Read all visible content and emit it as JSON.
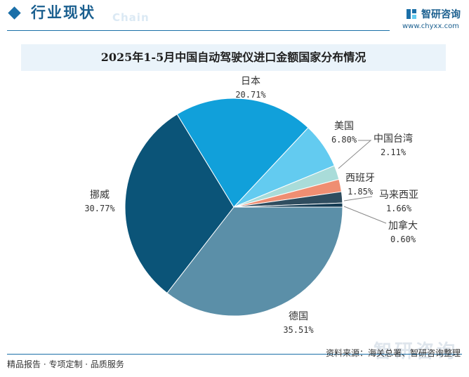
{
  "header": {
    "title": "行业现状",
    "subtitle_watermark": "Chain"
  },
  "logo": {
    "name": "智研咨询",
    "url": "www.chyxx.com"
  },
  "chart_data": {
    "type": "pie",
    "title": "2025年1-5月中国自动驾驶仪进口金额国家分布情况",
    "unit": "%",
    "slices": [
      {
        "label": "德国",
        "value": 35.51,
        "value_label": "35.51%",
        "color": "#5b8fa8"
      },
      {
        "label": "挪威",
        "value": 30.77,
        "value_label": "30.77%",
        "color": "#0b5478"
      },
      {
        "label": "日本",
        "value": 20.71,
        "value_label": "20.71%",
        "color": "#11a0da"
      },
      {
        "label": "美国",
        "value": 6.8,
        "value_label": "6.80%",
        "color": "#63cbf0"
      },
      {
        "label": "中国台湾",
        "value": 2.11,
        "value_label": "2.11%",
        "color": "#a9dcd9"
      },
      {
        "label": "西班牙",
        "value": 1.85,
        "value_label": "1.85%",
        "color": "#ef8e72"
      },
      {
        "label": "马来西亚",
        "value": 1.66,
        "value_label": "1.66%",
        "color": "#2f4d5f"
      },
      {
        "label": "加拿大",
        "value": 0.6,
        "value_label": "0.60%",
        "color": "#123a52"
      }
    ]
  },
  "footer": {
    "left": "精品报告 · 专项定制 · 品质服务",
    "source": "资料来源：海关总署、智研咨询整理",
    "watermark": "智研咨询"
  }
}
